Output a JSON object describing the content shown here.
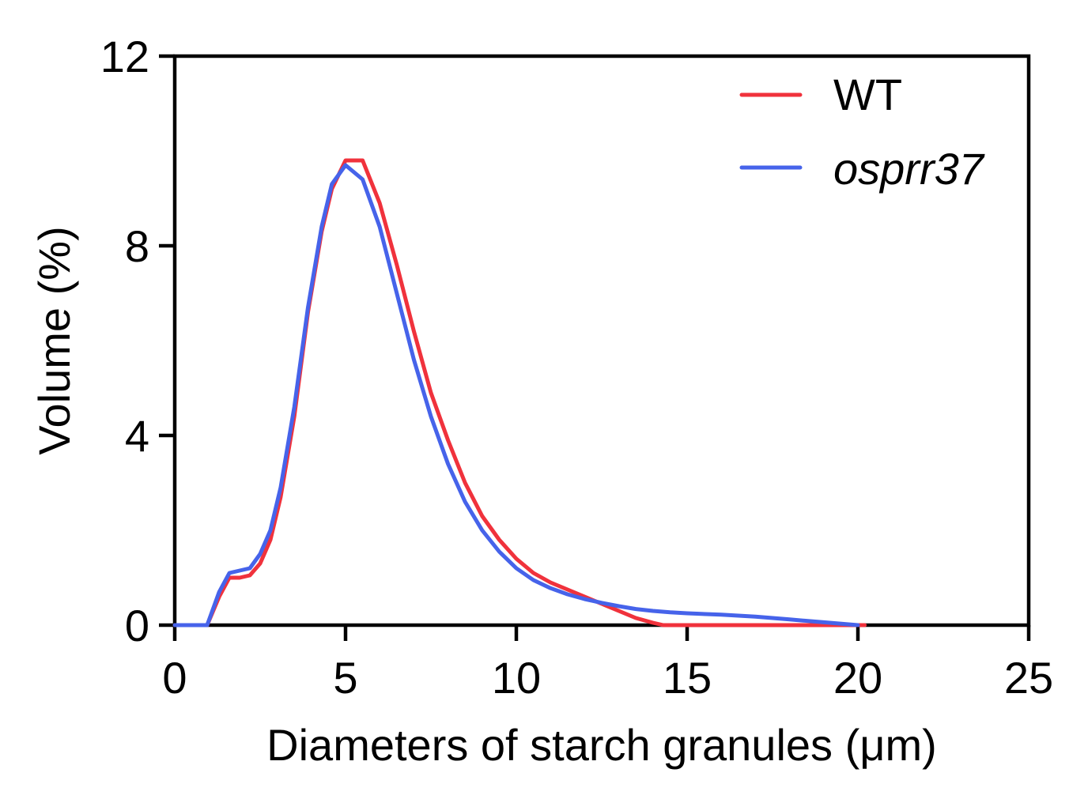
{
  "chart_data": {
    "type": "line",
    "title": "",
    "xlabel": "Diameters of starch granules (μm)",
    "ylabel": "Volume (%)",
    "xlim": [
      0,
      25
    ],
    "ylim": [
      0,
      12
    ],
    "xticks": [
      0,
      5,
      10,
      15,
      20,
      25
    ],
    "yticks": [
      0,
      4,
      8,
      12
    ],
    "grid": false,
    "legend_position": "top-right",
    "series": [
      {
        "name": "WT",
        "italic": false,
        "color": "#f0323c",
        "x": [
          0,
          0.95,
          1.3,
          1.6,
          1.9,
          2.2,
          2.5,
          2.8,
          3.1,
          3.5,
          3.9,
          4.3,
          4.6,
          5.0,
          5.5,
          6.0,
          6.5,
          7.0,
          7.5,
          8.0,
          8.5,
          9.0,
          9.5,
          10.0,
          10.5,
          11.0,
          11.5,
          12.0,
          12.5,
          13.0,
          13.5,
          14.0,
          14.3,
          15.0,
          16.0,
          17.0,
          18.0,
          19.0,
          20.2
        ],
        "y": [
          0,
          0,
          0.6,
          1.0,
          1.0,
          1.05,
          1.3,
          1.8,
          2.7,
          4.4,
          6.6,
          8.3,
          9.2,
          9.8,
          9.8,
          8.9,
          7.6,
          6.2,
          4.9,
          3.9,
          3.0,
          2.3,
          1.8,
          1.4,
          1.1,
          0.9,
          0.75,
          0.6,
          0.45,
          0.3,
          0.15,
          0.05,
          0,
          0,
          0,
          0,
          0,
          0,
          0
        ]
      },
      {
        "name": "osprr37",
        "italic": true,
        "color": "#4663ea",
        "x": [
          0,
          0.95,
          1.3,
          1.6,
          1.9,
          2.2,
          2.5,
          2.8,
          3.1,
          3.5,
          3.9,
          4.3,
          4.6,
          5.0,
          5.5,
          6.0,
          6.5,
          7.0,
          7.5,
          8.0,
          8.5,
          9.0,
          9.5,
          10.0,
          10.5,
          11.0,
          11.5,
          12.0,
          12.5,
          13.0,
          13.5,
          14.0,
          14.5,
          15.0,
          16.0,
          17.0,
          18.0,
          19.0,
          20.0
        ],
        "y": [
          0,
          0,
          0.7,
          1.1,
          1.15,
          1.2,
          1.5,
          2.0,
          2.9,
          4.6,
          6.7,
          8.4,
          9.3,
          9.7,
          9.4,
          8.4,
          7.0,
          5.6,
          4.4,
          3.4,
          2.6,
          2.0,
          1.55,
          1.2,
          0.95,
          0.78,
          0.65,
          0.55,
          0.47,
          0.4,
          0.34,
          0.3,
          0.27,
          0.25,
          0.22,
          0.18,
          0.12,
          0.06,
          0
        ]
      }
    ]
  }
}
